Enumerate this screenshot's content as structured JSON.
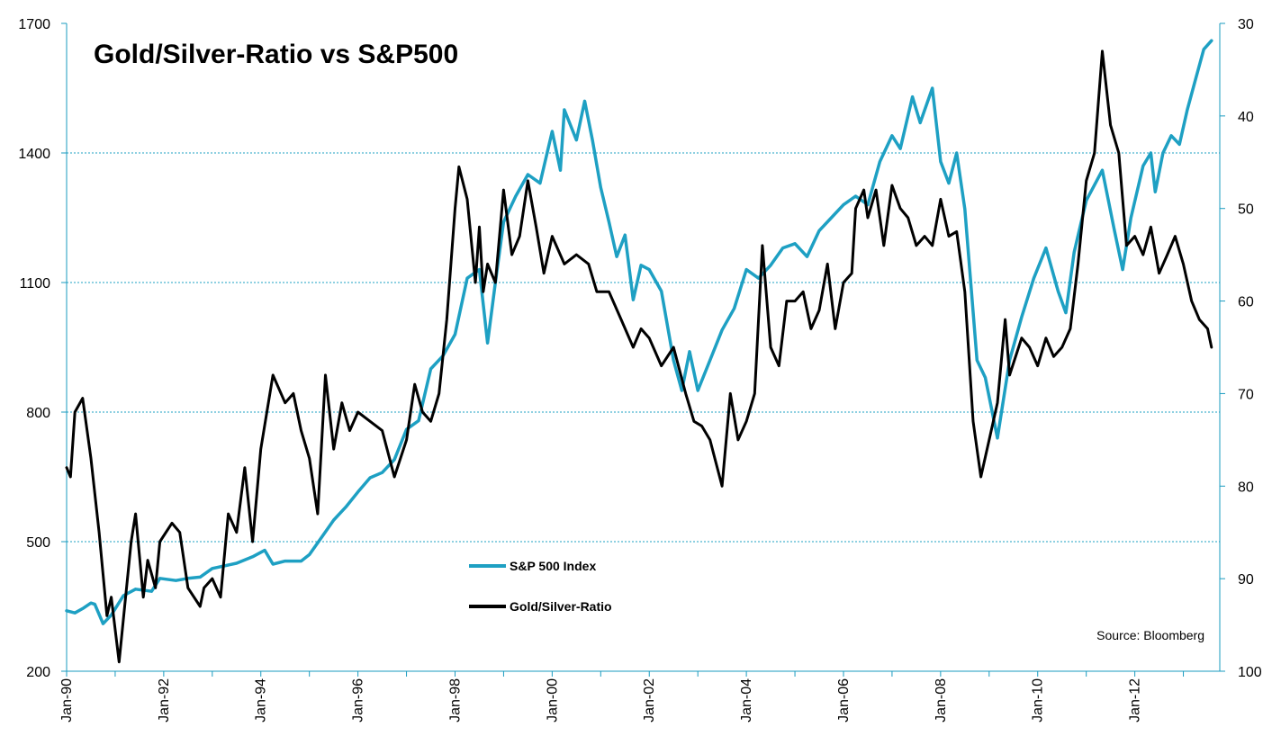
{
  "chart_data": {
    "type": "line",
    "title": "Gold/Silver-Ratio vs S&P500",
    "source": "Source: Bloomberg",
    "xlabel": "",
    "ylabel_left": "",
    "ylabel_right": "",
    "x_ticks": [
      "Jan-90",
      "Jan-92",
      "Jan-94",
      "Jan-96",
      "Jan-98",
      "Jan-00",
      "Jan-02",
      "Jan-04",
      "Jan-06",
      "Jan-08",
      "Jan-10",
      "Jan-12"
    ],
    "x_range": [
      1990.0,
      2013.58
    ],
    "y_left": {
      "min": 200,
      "max": 1700,
      "ticks": [
        200,
        500,
        800,
        1100,
        1400,
        1700
      ],
      "gridlines": [
        500,
        800,
        1100,
        1400
      ]
    },
    "y_right": {
      "min": 30,
      "max": 100,
      "inverted": true,
      "ticks": [
        30,
        40,
        50,
        60,
        70,
        80,
        90,
        100
      ]
    },
    "colors": {
      "sp500": "#1ea0c3",
      "ratio": "#000000",
      "grid": "#1ea0c3",
      "axis": "#1a9bbf"
    },
    "legend": {
      "placement": "lower-center"
    },
    "series": [
      {
        "name": "S&P 500 Index",
        "axis": "left",
        "points": [
          [
            1990.0,
            340
          ],
          [
            1990.17,
            335
          ],
          [
            1990.33,
            345
          ],
          [
            1990.5,
            358
          ],
          [
            1990.58,
            355
          ],
          [
            1990.75,
            310
          ],
          [
            1990.92,
            330
          ],
          [
            1991.17,
            375
          ],
          [
            1991.42,
            390
          ],
          [
            1991.75,
            385
          ],
          [
            1991.92,
            415
          ],
          [
            1992.25,
            410
          ],
          [
            1992.5,
            415
          ],
          [
            1992.75,
            418
          ],
          [
            1993.0,
            438
          ],
          [
            1993.5,
            450
          ],
          [
            1993.83,
            465
          ],
          [
            1994.08,
            480
          ],
          [
            1994.25,
            448
          ],
          [
            1994.5,
            455
          ],
          [
            1994.83,
            455
          ],
          [
            1995.0,
            470
          ],
          [
            1995.25,
            510
          ],
          [
            1995.5,
            550
          ],
          [
            1995.75,
            580
          ],
          [
            1996.0,
            615
          ],
          [
            1996.25,
            648
          ],
          [
            1996.5,
            660
          ],
          [
            1996.75,
            690
          ],
          [
            1997.0,
            760
          ],
          [
            1997.25,
            780
          ],
          [
            1997.5,
            900
          ],
          [
            1997.75,
            930
          ],
          [
            1998.0,
            980
          ],
          [
            1998.25,
            1110
          ],
          [
            1998.5,
            1130
          ],
          [
            1998.67,
            960
          ],
          [
            1998.83,
            1100
          ],
          [
            1999.0,
            1240
          ],
          [
            1999.25,
            1300
          ],
          [
            1999.5,
            1350
          ],
          [
            1999.75,
            1330
          ],
          [
            2000.0,
            1450
          ],
          [
            2000.17,
            1360
          ],
          [
            2000.25,
            1500
          ],
          [
            2000.5,
            1430
          ],
          [
            2000.67,
            1520
          ],
          [
            2000.83,
            1430
          ],
          [
            2001.0,
            1320
          ],
          [
            2001.17,
            1240
          ],
          [
            2001.33,
            1160
          ],
          [
            2001.5,
            1210
          ],
          [
            2001.67,
            1060
          ],
          [
            2001.83,
            1140
          ],
          [
            2002.0,
            1130
          ],
          [
            2002.25,
            1080
          ],
          [
            2002.5,
            920
          ],
          [
            2002.67,
            850
          ],
          [
            2002.83,
            940
          ],
          [
            2003.0,
            850
          ],
          [
            2003.25,
            920
          ],
          [
            2003.5,
            990
          ],
          [
            2003.75,
            1040
          ],
          [
            2004.0,
            1130
          ],
          [
            2004.25,
            1110
          ],
          [
            2004.5,
            1140
          ],
          [
            2004.75,
            1180
          ],
          [
            2005.0,
            1190
          ],
          [
            2005.25,
            1160
          ],
          [
            2005.5,
            1220
          ],
          [
            2005.75,
            1250
          ],
          [
            2006.0,
            1280
          ],
          [
            2006.25,
            1300
          ],
          [
            2006.5,
            1280
          ],
          [
            2006.75,
            1380
          ],
          [
            2007.0,
            1440
          ],
          [
            2007.17,
            1410
          ],
          [
            2007.42,
            1530
          ],
          [
            2007.58,
            1470
          ],
          [
            2007.83,
            1550
          ],
          [
            2008.0,
            1380
          ],
          [
            2008.17,
            1330
          ],
          [
            2008.33,
            1400
          ],
          [
            2008.5,
            1270
          ],
          [
            2008.75,
            920
          ],
          [
            2008.92,
            880
          ],
          [
            2009.17,
            740
          ],
          [
            2009.42,
            920
          ],
          [
            2009.67,
            1020
          ],
          [
            2009.92,
            1110
          ],
          [
            2010.17,
            1180
          ],
          [
            2010.42,
            1080
          ],
          [
            2010.58,
            1030
          ],
          [
            2010.75,
            1170
          ],
          [
            2011.0,
            1290
          ],
          [
            2011.33,
            1360
          ],
          [
            2011.58,
            1220
          ],
          [
            2011.75,
            1130
          ],
          [
            2011.92,
            1250
          ],
          [
            2012.17,
            1370
          ],
          [
            2012.33,
            1400
          ],
          [
            2012.42,
            1310
          ],
          [
            2012.58,
            1400
          ],
          [
            2012.75,
            1440
          ],
          [
            2012.92,
            1420
          ],
          [
            2013.08,
            1500
          ],
          [
            2013.25,
            1570
          ],
          [
            2013.42,
            1640
          ],
          [
            2013.58,
            1660
          ]
        ]
      },
      {
        "name": "Gold/Silver-Ratio",
        "axis": "right",
        "points": [
          [
            1990.0,
            78
          ],
          [
            1990.08,
            79
          ],
          [
            1990.17,
            72
          ],
          [
            1990.33,
            70.5
          ],
          [
            1990.5,
            77
          ],
          [
            1990.67,
            85
          ],
          [
            1990.83,
            94
          ],
          [
            1990.92,
            92
          ],
          [
            1991.08,
            99
          ],
          [
            1991.33,
            86
          ],
          [
            1991.42,
            83
          ],
          [
            1991.58,
            92
          ],
          [
            1991.67,
            88
          ],
          [
            1991.83,
            91
          ],
          [
            1991.92,
            86
          ],
          [
            1992.17,
            84
          ],
          [
            1992.33,
            85
          ],
          [
            1992.5,
            91
          ],
          [
            1992.75,
            93
          ],
          [
            1992.83,
            91
          ],
          [
            1993.0,
            90
          ],
          [
            1993.17,
            92
          ],
          [
            1993.33,
            83
          ],
          [
            1993.5,
            85
          ],
          [
            1993.67,
            78
          ],
          [
            1993.83,
            86
          ],
          [
            1994.0,
            76
          ],
          [
            1994.25,
            68
          ],
          [
            1994.5,
            71
          ],
          [
            1994.67,
            70
          ],
          [
            1994.83,
            74
          ],
          [
            1995.0,
            77
          ],
          [
            1995.17,
            83
          ],
          [
            1995.33,
            68
          ],
          [
            1995.5,
            76
          ],
          [
            1995.67,
            71
          ],
          [
            1995.83,
            74
          ],
          [
            1996.0,
            72
          ],
          [
            1996.25,
            73
          ],
          [
            1996.5,
            74
          ],
          [
            1996.75,
            79
          ],
          [
            1997.0,
            75
          ],
          [
            1997.17,
            69
          ],
          [
            1997.33,
            72
          ],
          [
            1997.5,
            73
          ],
          [
            1997.67,
            70
          ],
          [
            1997.83,
            62
          ],
          [
            1998.0,
            50
          ],
          [
            1998.08,
            45.5
          ],
          [
            1998.25,
            49
          ],
          [
            1998.42,
            58
          ],
          [
            1998.5,
            52
          ],
          [
            1998.58,
            59
          ],
          [
            1998.67,
            56
          ],
          [
            1998.83,
            58
          ],
          [
            1999.0,
            48
          ],
          [
            1999.17,
            55
          ],
          [
            1999.33,
            53
          ],
          [
            1999.5,
            47
          ],
          [
            1999.67,
            52
          ],
          [
            1999.83,
            57
          ],
          [
            2000.0,
            53
          ],
          [
            2000.25,
            56
          ],
          [
            2000.5,
            55
          ],
          [
            2000.75,
            56
          ],
          [
            2000.92,
            59
          ],
          [
            2001.17,
            59
          ],
          [
            2001.42,
            62
          ],
          [
            2001.67,
            65
          ],
          [
            2001.83,
            63
          ],
          [
            2002.0,
            64
          ],
          [
            2002.25,
            67
          ],
          [
            2002.5,
            65
          ],
          [
            2002.75,
            70
          ],
          [
            2002.92,
            73
          ],
          [
            2003.08,
            73.5
          ],
          [
            2003.25,
            75
          ],
          [
            2003.5,
            80
          ],
          [
            2003.67,
            70
          ],
          [
            2003.83,
            75
          ],
          [
            2004.0,
            73
          ],
          [
            2004.17,
            70
          ],
          [
            2004.25,
            62
          ],
          [
            2004.33,
            54
          ],
          [
            2004.5,
            65
          ],
          [
            2004.67,
            67
          ],
          [
            2004.83,
            60
          ],
          [
            2005.0,
            60
          ],
          [
            2005.17,
            59
          ],
          [
            2005.33,
            63
          ],
          [
            2005.5,
            61
          ],
          [
            2005.67,
            56
          ],
          [
            2005.83,
            63
          ],
          [
            2006.0,
            58
          ],
          [
            2006.17,
            57
          ],
          [
            2006.25,
            50
          ],
          [
            2006.42,
            48
          ],
          [
            2006.5,
            51
          ],
          [
            2006.67,
            48
          ],
          [
            2006.83,
            54
          ],
          [
            2007.0,
            47.5
          ],
          [
            2007.17,
            50
          ],
          [
            2007.33,
            51
          ],
          [
            2007.5,
            54
          ],
          [
            2007.67,
            53
          ],
          [
            2007.83,
            54
          ],
          [
            2008.0,
            49
          ],
          [
            2008.17,
            53
          ],
          [
            2008.33,
            52.5
          ],
          [
            2008.5,
            59
          ],
          [
            2008.67,
            73
          ],
          [
            2008.83,
            79
          ],
          [
            2009.0,
            75
          ],
          [
            2009.17,
            71
          ],
          [
            2009.33,
            62
          ],
          [
            2009.42,
            68
          ],
          [
            2009.67,
            64
          ],
          [
            2009.83,
            65
          ],
          [
            2010.0,
            67
          ],
          [
            2010.17,
            64
          ],
          [
            2010.33,
            66
          ],
          [
            2010.5,
            65
          ],
          [
            2010.67,
            63
          ],
          [
            2010.83,
            56
          ],
          [
            2011.0,
            47
          ],
          [
            2011.17,
            44
          ],
          [
            2011.33,
            33
          ],
          [
            2011.5,
            41
          ],
          [
            2011.67,
            44
          ],
          [
            2011.83,
            54
          ],
          [
            2012.0,
            53
          ],
          [
            2012.17,
            55
          ],
          [
            2012.33,
            52
          ],
          [
            2012.5,
            57
          ],
          [
            2012.67,
            55
          ],
          [
            2012.83,
            53
          ],
          [
            2013.0,
            56
          ],
          [
            2013.17,
            60
          ],
          [
            2013.33,
            62
          ],
          [
            2013.5,
            63
          ],
          [
            2013.58,
            65
          ]
        ]
      }
    ]
  }
}
